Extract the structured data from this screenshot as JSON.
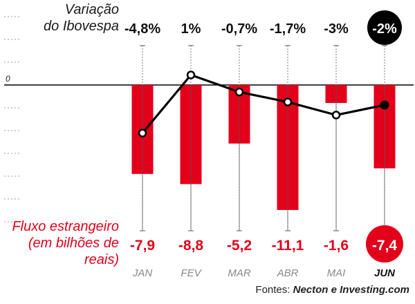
{
  "chart_data": {
    "type": "bar",
    "categories": [
      "JAN",
      "FEV",
      "MAR",
      "ABR",
      "MAI",
      "JUN"
    ],
    "series": [
      {
        "name": "Fluxo estrangeiro (em bilhões de reais)",
        "type": "bar",
        "values": [
          -7.9,
          -8.8,
          -5.2,
          -11.1,
          -1.6,
          -7.4
        ],
        "labels": [
          "-7,9",
          "-8,8",
          "-5,2",
          "-11,1",
          "-1,6",
          "-7,4"
        ]
      },
      {
        "name": "Variação do Ibovespa",
        "type": "line",
        "values": [
          -4.8,
          1,
          -0.7,
          -1.7,
          -3,
          -2
        ],
        "labels": [
          "-4,8%",
          "1%",
          "-0,7%",
          "-1,7%",
          "-3%",
          "-2%"
        ]
      }
    ],
    "zero_label": "0",
    "highlight_last": true,
    "colors": {
      "bar": "#e3001b",
      "line": "#000000",
      "axis_labels": "#888888"
    }
  },
  "labels": {
    "ibov_line1": "Variação",
    "ibov_line2": "do Ibovespa",
    "flow_line1": "Fluxo estrangeiro",
    "flow_line2": "(em bilhões de reais)"
  },
  "source": {
    "prefix": "Fontes:",
    "names": "Necton e Investing.com"
  }
}
